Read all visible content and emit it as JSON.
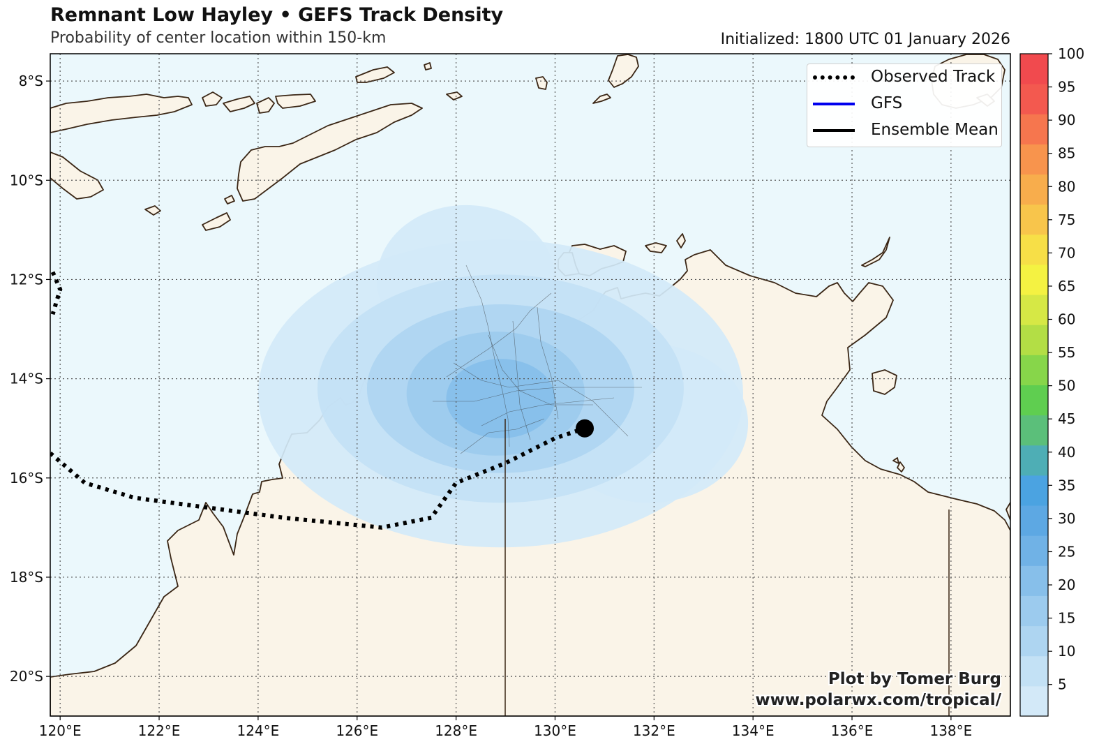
{
  "header": {
    "title": "Remnant Low Hayley • GEFS Track Density",
    "subtitle": "Probability of center location within 150-km",
    "initialized": "Initialized: 1800 UTC 01 January 2026"
  },
  "map": {
    "lon_range": [
      119.8,
      139.2
    ],
    "lat_range": [
      -20.8,
      -7.45
    ],
    "lon_ticks": [
      120,
      122,
      124,
      126,
      128,
      130,
      132,
      134,
      136,
      138
    ],
    "lat_ticks": [
      -8,
      -10,
      -12,
      -14,
      -16,
      -18,
      -20
    ],
    "lon_labels": [
      "120°E",
      "122°E",
      "124°E",
      "126°E",
      "128°E",
      "130°E",
      "132°E",
      "134°E",
      "136°E",
      "138°E"
    ],
    "lat_labels": [
      "8°S",
      "10°S",
      "12°S",
      "14°S",
      "16°S",
      "18°S",
      "20°S"
    ],
    "grid": true,
    "colors": {
      "ocean": "#ebf8fc",
      "land": "#faf4e8",
      "coast": "#3a2615",
      "grid": "#555555"
    }
  },
  "legend": {
    "placement": "top-right",
    "items": [
      {
        "label": "Observed Track",
        "color": "#000000",
        "style": "dotted"
      },
      {
        "label": "GFS",
        "color": "#0000ee",
        "style": "solid"
      },
      {
        "label": "Ensemble Mean",
        "color": "#000000",
        "style": "solid"
      }
    ]
  },
  "colorbar": {
    "labels": [
      "5",
      "10",
      "15",
      "20",
      "25",
      "30",
      "35",
      "40",
      "45",
      "50",
      "55",
      "60",
      "65",
      "70",
      "75",
      "80",
      "85",
      "90",
      "95",
      "100"
    ],
    "colors": [
      "#d3e9f8",
      "#c3e1f5",
      "#aed5f1",
      "#9ccbee",
      "#87bfea",
      "#70b2e6",
      "#5da8e3",
      "#4ba3e1",
      "#4eaeb5",
      "#5bbf7a",
      "#5fce50",
      "#87d64a",
      "#b3de45",
      "#d6e845",
      "#f4f242",
      "#f7df47",
      "#f8c54b",
      "#f8ad4c",
      "#f8944d",
      "#f6764e",
      "#f3594f",
      "#f14a4e"
    ]
  },
  "chart_data": {
    "type": "heatmap",
    "title": "Remnant Low Hayley • GEFS Track Density",
    "subtitle": "Probability of center location within 150-km",
    "observed_track": [
      [
        119.8,
        -15.5
      ],
      [
        120.5,
        -16.1
      ],
      [
        121.5,
        -16.4
      ],
      [
        123.0,
        -16.6
      ],
      [
        124.5,
        -16.8
      ],
      [
        126.5,
        -17.0
      ],
      [
        127.5,
        -16.8
      ],
      [
        128.0,
        -16.1
      ],
      [
        129.0,
        -15.7
      ],
      [
        130.0,
        -15.2
      ],
      [
        130.6,
        -15.0
      ]
    ],
    "observed_track_2": [
      [
        119.85,
        -11.85
      ],
      [
        120.0,
        -12.2
      ],
      [
        119.85,
        -12.7
      ]
    ],
    "current_position": [
      130.6,
      -15.0
    ],
    "density_levels": [
      {
        "value": 5,
        "center": [
          128.9,
          -14.3
        ],
        "rx": 4.9,
        "ry": 3.1
      },
      {
        "value": 5,
        "center": [
          128.2,
          -12.0
        ],
        "rx": 1.8,
        "ry": 1.5
      },
      {
        "value": 5,
        "center": [
          131.9,
          -14.9
        ],
        "rx": 2.0,
        "ry": 1.6
      },
      {
        "value": 10,
        "center": [
          128.9,
          -14.2
        ],
        "rx": 3.7,
        "ry": 2.3
      },
      {
        "value": 15,
        "center": [
          128.9,
          -14.2
        ],
        "rx": 2.7,
        "ry": 1.7
      },
      {
        "value": 20,
        "center": [
          128.8,
          -14.3
        ],
        "rx": 1.8,
        "ry": 1.25
      },
      {
        "value": 25,
        "center": [
          128.9,
          -14.4
        ],
        "rx": 1.1,
        "ry": 0.8
      }
    ],
    "member_meridians": [
      129.0,
      138.0
    ]
  },
  "credits": {
    "line1": "Plot by Tomer Burg",
    "line2": "www.polarwx.com/tropical/"
  }
}
